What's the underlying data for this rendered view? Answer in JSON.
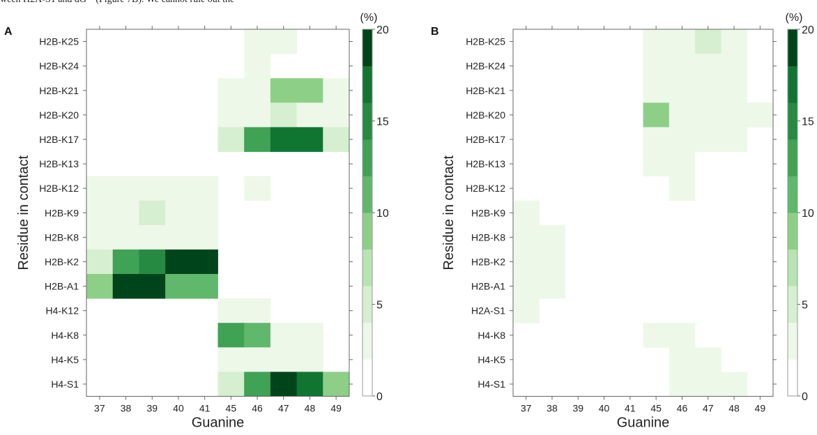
{
  "caption_fragment": "ween H2A-S1 and dG¹⁰ (Figure 7B). We cannot rule out the",
  "chart_data": [
    {
      "type": "heatmap",
      "panel_label": "A",
      "xlabel": "Guanine",
      "ylabel": "Residue in contact",
      "x_categories": [
        "37",
        "38",
        "39",
        "40",
        "41",
        "45",
        "46",
        "47",
        "48",
        "49"
      ],
      "y_categories": [
        "H2B-K25",
        "H2B-K24",
        "H2B-K21",
        "H2B-K20",
        "H2B-K17",
        "H2B-K13",
        "H2B-K12",
        "H2B-K9",
        "H2B-K8",
        "H2B-K2",
        "H2B-A1",
        "H4-K12",
        "H4-K8",
        "H4-K5",
        "H4-S1"
      ],
      "values": [
        [
          0,
          0,
          0,
          0,
          0,
          0,
          1,
          1,
          0,
          0
        ],
        [
          0,
          0,
          0,
          0,
          0,
          0,
          1,
          0,
          0,
          0
        ],
        [
          0,
          0,
          0,
          0,
          0,
          1,
          1,
          7,
          7,
          1
        ],
        [
          0,
          0,
          0,
          0,
          0,
          1,
          1,
          3,
          1,
          1
        ],
        [
          0,
          0,
          0,
          0,
          0,
          3,
          11,
          15,
          15,
          3
        ],
        [
          0,
          0,
          0,
          0,
          0,
          0,
          0,
          0,
          0,
          0
        ],
        [
          1,
          1,
          1,
          1,
          1,
          0,
          1,
          0,
          0,
          0
        ],
        [
          1,
          1,
          3,
          1,
          1,
          0,
          0,
          0,
          0,
          0
        ],
        [
          1,
          1,
          1,
          1,
          1,
          0,
          0,
          0,
          0,
          0
        ],
        [
          3,
          11,
          13,
          20,
          20,
          0,
          0,
          0,
          0,
          0
        ],
        [
          7,
          20,
          20,
          9,
          9,
          0,
          0,
          0,
          0,
          0
        ],
        [
          0,
          0,
          0,
          0,
          0,
          1,
          1,
          0,
          0,
          0
        ],
        [
          0,
          0,
          0,
          0,
          0,
          11,
          9,
          1,
          1,
          0
        ],
        [
          0,
          0,
          0,
          0,
          0,
          1,
          1,
          1,
          1,
          0
        ],
        [
          0,
          0,
          0,
          0,
          0,
          3,
          11,
          20,
          15,
          7
        ]
      ],
      "colorbar": {
        "unit": "(%)",
        "range": [
          0,
          20
        ],
        "ticks": [
          0,
          5,
          10,
          15,
          20
        ]
      }
    },
    {
      "type": "heatmap",
      "panel_label": "B",
      "xlabel": "Guanine",
      "ylabel": "Residue in contact",
      "x_categories": [
        "37",
        "38",
        "39",
        "40",
        "41",
        "45",
        "46",
        "47",
        "48",
        "49"
      ],
      "y_categories": [
        "H2B-K25",
        "H2B-K24",
        "H2B-K21",
        "H2B-K20",
        "H2B-K17",
        "H2B-K13",
        "H2B-K12",
        "H2B-K9",
        "H2B-K8",
        "H2B-K2",
        "H2B-A1",
        "H2A-S1",
        "H4-K8",
        "H4-K5",
        "H4-S1"
      ],
      "values": [
        [
          0,
          0,
          0,
          0,
          0,
          1,
          1,
          3,
          1,
          0
        ],
        [
          0,
          0,
          0,
          0,
          0,
          1,
          1,
          1,
          1,
          0
        ],
        [
          0,
          0,
          0,
          0,
          0,
          1,
          1,
          1,
          1,
          0
        ],
        [
          0,
          0,
          0,
          0,
          0,
          7,
          1,
          1,
          1,
          1
        ],
        [
          0,
          0,
          0,
          0,
          0,
          1,
          1,
          1,
          1,
          0
        ],
        [
          0,
          0,
          0,
          0,
          0,
          1,
          1,
          0,
          0,
          0
        ],
        [
          0,
          0,
          0,
          0,
          0,
          0,
          1,
          0,
          0,
          0
        ],
        [
          1,
          0,
          0,
          0,
          0,
          0,
          0,
          0,
          0,
          0
        ],
        [
          1,
          1,
          0,
          0,
          0,
          0,
          0,
          0,
          0,
          0
        ],
        [
          1,
          1,
          0,
          0,
          0,
          0,
          0,
          0,
          0,
          0
        ],
        [
          1,
          1,
          0,
          0,
          0,
          0,
          0,
          0,
          0,
          0
        ],
        [
          1,
          0,
          0,
          0,
          0,
          0,
          0,
          0,
          0,
          0
        ],
        [
          0,
          0,
          0,
          0,
          0,
          1,
          1,
          0,
          0,
          0
        ],
        [
          0,
          0,
          0,
          0,
          0,
          0,
          1,
          1,
          0,
          0
        ],
        [
          0,
          0,
          0,
          0,
          0,
          0,
          1,
          1,
          1,
          0
        ]
      ],
      "colorbar": {
        "unit": "(%)",
        "range": [
          0,
          20
        ],
        "ticks": [
          0,
          5,
          10,
          15,
          20
        ]
      }
    }
  ],
  "color_scale": {
    "bins": 10,
    "colors": [
      "#ffffff",
      "#edf8e9",
      "#d6efd0",
      "#b8e3b2",
      "#8ecf88",
      "#5fb86b",
      "#3fa255",
      "#268a43",
      "#117532",
      "#00441b"
    ]
  }
}
